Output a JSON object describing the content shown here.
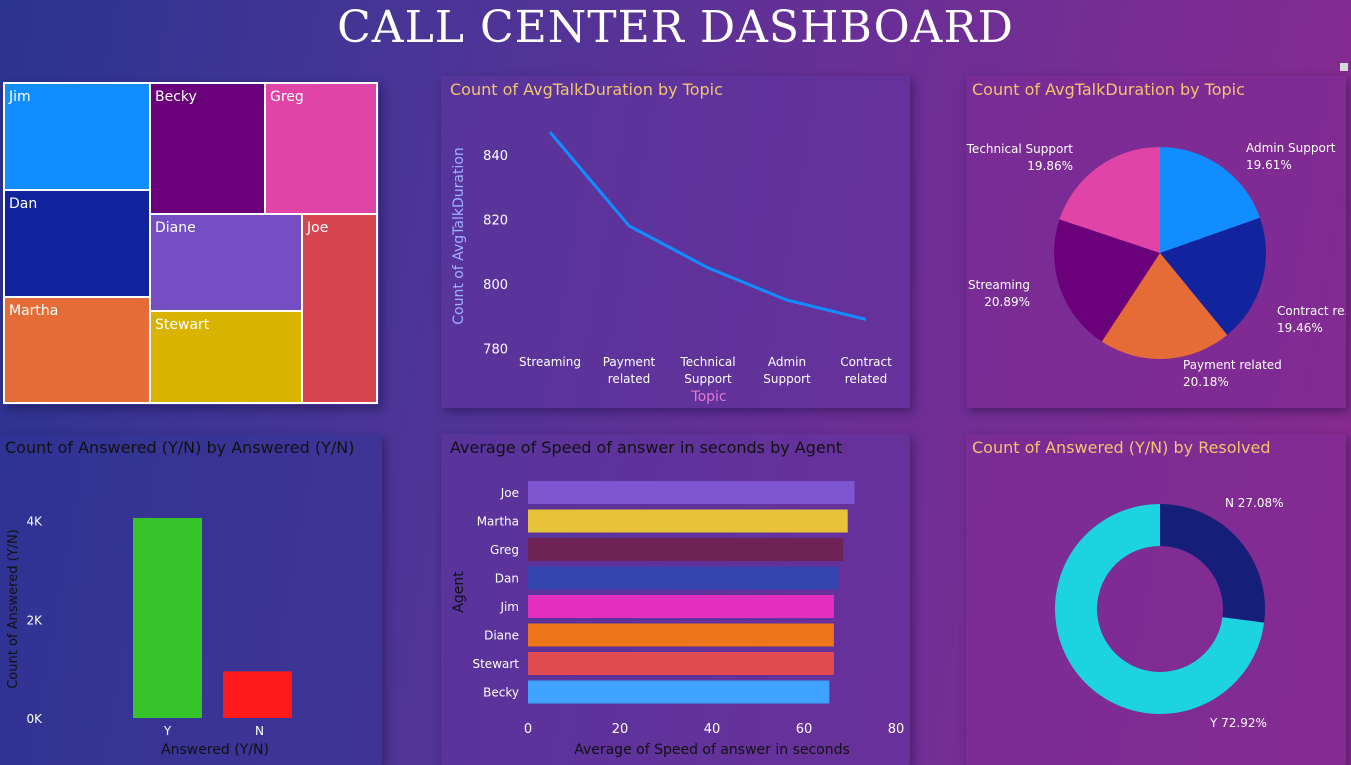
{
  "title": "CALL CENTER DASHBOARD",
  "treemap": {
    "items": [
      {
        "name": "Jim",
        "color": "#118dff"
      },
      {
        "name": "Becky",
        "color": "#6b007b"
      },
      {
        "name": "Greg",
        "color": "#e044a7"
      },
      {
        "name": "Dan",
        "color": "#12239e"
      },
      {
        "name": "Diane",
        "color": "#744ec2"
      },
      {
        "name": "Joe",
        "color": "#d64550"
      },
      {
        "name": "Martha",
        "color": "#e66c37"
      },
      {
        "name": "Stewart",
        "color": "#d9b300"
      }
    ]
  },
  "line_chart": {
    "title": "Count of AvgTalkDuration by Topic",
    "chart_data": {
      "type": "line",
      "categories": [
        "Streaming",
        "Payment related",
        "Technical Support",
        "Admin Support",
        "Contract related"
      ],
      "category_lines": [
        [
          "Streaming"
        ],
        [
          "Payment",
          "related"
        ],
        [
          "Technical",
          "Support"
        ],
        [
          "Admin",
          "Support"
        ],
        [
          "Contract",
          "related"
        ]
      ],
      "values": [
        847,
        818,
        805,
        795,
        789
      ],
      "ylim": [
        778,
        852
      ],
      "yticks": [
        "780",
        "800",
        "820",
        "840"
      ],
      "ytick_values": [
        780,
        800,
        820,
        840
      ],
      "xlabel": "Topic",
      "ylabel": "Count of AvgTalkDuration",
      "color": "#118dff"
    }
  },
  "pie_chart": {
    "title": "Count of AvgTalkDuration by Topic",
    "chart_data": {
      "type": "pie",
      "slices": [
        {
          "name": "Admin Support",
          "percent": "19.61%",
          "value": 19.61,
          "color": "#118dff"
        },
        {
          "name": "Contract re...",
          "percent": "19.46%",
          "value": 19.46,
          "color": "#12239e"
        },
        {
          "name": "Payment related",
          "percent": "20.18%",
          "value": 20.18,
          "color": "#e66c37"
        },
        {
          "name": "Streaming",
          "percent": "20.89%",
          "value": 20.89,
          "color": "#6b007b"
        },
        {
          "name": "Technical Support",
          "percent": "19.86%",
          "value": 19.86,
          "color": "#e044a7"
        }
      ]
    }
  },
  "column_chart": {
    "title": "Count of Answered (Y/N) by Answered (Y/N)",
    "chart_data": {
      "type": "bar",
      "categories": [
        "Y",
        "N"
      ],
      "values": [
        4054,
        946
      ],
      "colors": [
        "#37c42a",
        "#ff1a1a"
      ],
      "ylim": [
        0,
        4500
      ],
      "yticks": [
        "0K",
        "2K",
        "4K"
      ],
      "ytick_values": [
        0,
        2000,
        4000
      ],
      "xlabel": "Answered (Y/N)",
      "ylabel": "Count of Answered (Y/N)"
    }
  },
  "bar_chart": {
    "title": "Average of Speed of answer in seconds by Agent",
    "chart_data": {
      "type": "bar",
      "orientation": "horizontal",
      "categories": [
        "Joe",
        "Martha",
        "Greg",
        "Dan",
        "Jim",
        "Diane",
        "Stewart",
        "Becky"
      ],
      "values": [
        71,
        69.5,
        68.5,
        67.5,
        66.5,
        66.5,
        66.5,
        65.5
      ],
      "colors": [
        "#7d55d0",
        "#e6c338",
        "#6f2255",
        "#3545b0",
        "#e22fbf",
        "#f07419",
        "#e04b50",
        "#3fa2ff"
      ],
      "xlim": [
        0,
        80
      ],
      "xticks": [
        "0",
        "20",
        "40",
        "60",
        "80"
      ],
      "xtick_values": [
        0,
        20,
        40,
        60,
        80
      ],
      "xlabel": "Average of Speed of answer in seconds",
      "ylabel": "Agent"
    }
  },
  "donut_chart": {
    "title": "Count of Answered (Y/N) by Resolved",
    "chart_data": {
      "type": "pie",
      "donut": true,
      "slices": [
        {
          "name": "N",
          "percent": "27.08%",
          "label": "N 27.08%",
          "value": 27.08,
          "color": "#151f7a"
        },
        {
          "name": "Y",
          "percent": "72.92%",
          "label": "Y 72.92%",
          "value": 72.92,
          "color": "#1dd3e0"
        }
      ]
    }
  }
}
